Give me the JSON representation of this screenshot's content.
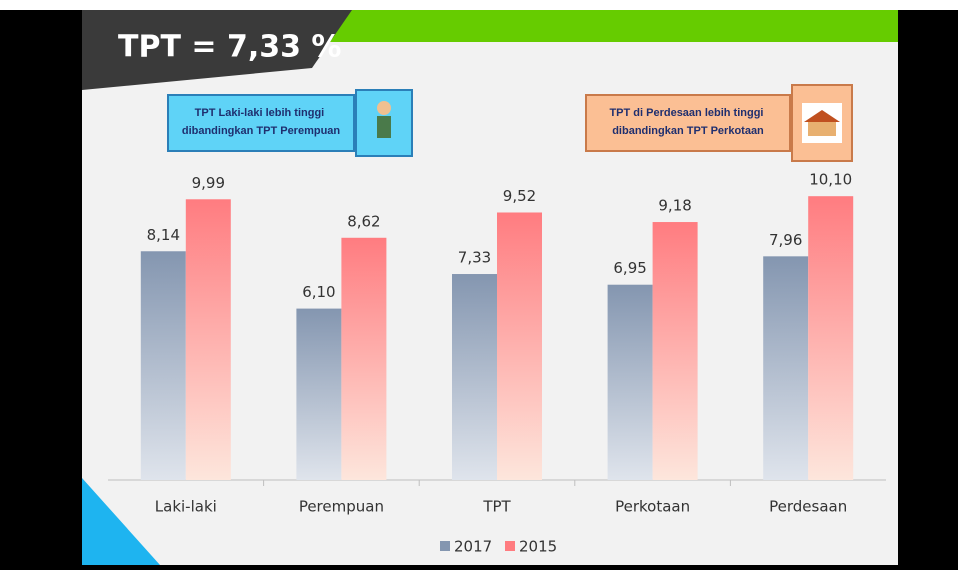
{
  "chart_data": {
    "type": "bar",
    "title": "TPT = 7,33 %",
    "annotations": [
      "TPT Laki-laki lebih tinggi dibandingkan TPT Perempuan",
      "TPT di Perdesaan lebih tinggi dibandingkan TPT Perkotaan"
    ],
    "categories": [
      "Laki-laki",
      "Perempuan",
      "TPT",
      "Perkotaan",
      "Perdesaan"
    ],
    "series": [
      {
        "name": "2017",
        "color": "#8496b0",
        "values": [
          8.14,
          6.1,
          7.33,
          6.95,
          7.96
        ],
        "value_labels": [
          "8,14",
          "6,10",
          "7,33",
          "6,95",
          "7,96"
        ]
      },
      {
        "name": "2015",
        "color": "#ff7c80",
        "values": [
          9.99,
          8.62,
          9.52,
          9.18,
          10.1
        ],
        "value_labels": [
          "9,99",
          "8,62",
          "9,52",
          "9,18",
          "10,10"
        ]
      }
    ],
    "legend": "bottom"
  }
}
